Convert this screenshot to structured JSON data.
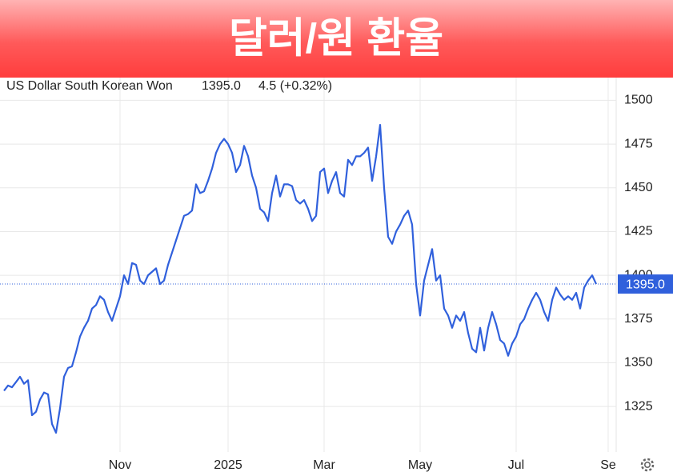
{
  "banner": {
    "title": "달러/원 환율"
  },
  "chart_data": {
    "type": "line",
    "title": "US Dollar South Korean Won",
    "price": "1395.0",
    "change": "4.5 (+0.32%)",
    "color": "#3060dc",
    "change_color": "#2db84d",
    "ylim": [
      1299,
      1513
    ],
    "yticks": [
      1325,
      1350,
      1375,
      1400,
      1425,
      1450,
      1475,
      1500
    ],
    "grid": true,
    "categories": [
      null,
      null,
      null,
      null,
      null,
      null,
      null,
      null,
      null,
      null,
      null,
      null,
      null,
      null,
      null,
      null,
      null,
      null,
      null,
      null,
      null,
      null,
      null,
      null,
      null,
      null,
      null,
      null,
      null,
      "Nov",
      null,
      null,
      null,
      null,
      null,
      null,
      null,
      null,
      null,
      null,
      null,
      null,
      null,
      null,
      null,
      null,
      null,
      null,
      null,
      null,
      null,
      null,
      null,
      null,
      null,
      null,
      "2025",
      null,
      null,
      null,
      null,
      null,
      null,
      null,
      null,
      null,
      null,
      null,
      null,
      null,
      null,
      null,
      null,
      null,
      null,
      null,
      null,
      null,
      null,
      null,
      "Mar",
      null,
      null,
      null,
      null,
      null,
      null,
      null,
      null,
      null,
      null,
      null,
      null,
      null,
      null,
      null,
      null,
      null,
      null,
      null,
      null,
      null,
      null,
      null,
      "May",
      null,
      null,
      null,
      null,
      null,
      null,
      null,
      null,
      null,
      null,
      null,
      null,
      null,
      null,
      null,
      null,
      null,
      null,
      null,
      null,
      null,
      null,
      null,
      "Jul",
      null,
      null,
      null,
      null,
      null,
      null,
      null,
      null,
      null,
      null,
      null,
      null,
      null,
      null,
      null,
      null,
      null,
      null,
      null,
      null,
      null,
      null,
      "Se"
    ],
    "values": [
      1334,
      1337,
      1336,
      1339,
      1342,
      1338,
      1340,
      1320,
      1322,
      1329,
      1333,
      1332,
      1315,
      1310,
      1324,
      1342,
      1347,
      1348,
      1356,
      1365,
      1370,
      1374,
      1381,
      1383,
      1388,
      1386,
      1379,
      1374,
      1381,
      1388,
      1400,
      1395,
      1407,
      1406,
      1397,
      1395,
      1400,
      1402,
      1404,
      1395,
      1397,
      1406,
      1413,
      1420,
      1427,
      1434,
      1435,
      1437,
      1452,
      1447,
      1448,
      1454,
      1461,
      1470,
      1475,
      1478,
      1475,
      1470,
      1459,
      1463,
      1474,
      1468,
      1457,
      1450,
      1438,
      1436,
      1431,
      1447,
      1457,
      1445,
      1452,
      1452,
      1451,
      1443,
      1441,
      1443,
      1438,
      1431,
      1434,
      1459,
      1461,
      1447,
      1454,
      1459,
      1447,
      1445,
      1466,
      1463,
      1468,
      1468,
      1470,
      1473,
      1454,
      1468,
      1486,
      1450,
      1422,
      1418,
      1425,
      1429,
      1434,
      1437,
      1429,
      1395,
      1377,
      1397,
      1406,
      1415,
      1397,
      1400,
      1381,
      1377,
      1370,
      1377,
      1374,
      1379,
      1367,
      1358,
      1356,
      1370,
      1357,
      1370,
      1379,
      1372,
      1363,
      1361,
      1354,
      1361,
      1365,
      1372,
      1375,
      1381,
      1386,
      1390,
      1386,
      1379,
      1374,
      1386,
      1393,
      1389,
      1386,
      1388,
      1386,
      1390,
      1381,
      1393,
      1397,
      1400,
      1395,
      null,
      null,
      null
    ]
  }
}
